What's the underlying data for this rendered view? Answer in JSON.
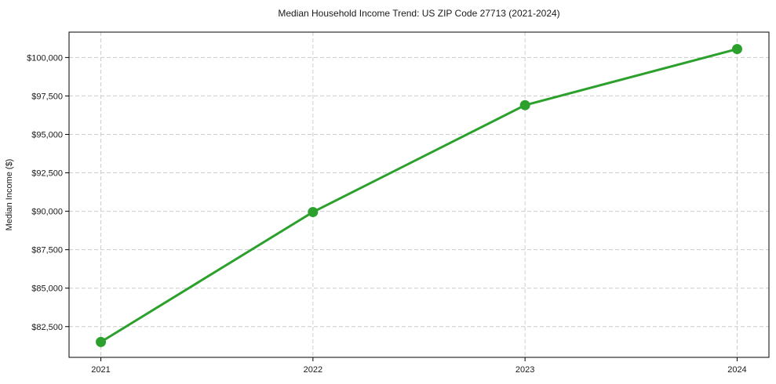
{
  "chart_data": {
    "type": "line",
    "title": "Median Household Income Trend: US ZIP Code 27713 (2021-2024)",
    "xlabel": "",
    "ylabel": "Median Income ($)",
    "x": [
      2021,
      2022,
      2023,
      2024
    ],
    "series": [
      {
        "name": "Median Income",
        "values": [
          81500,
          89950,
          96900,
          100550
        ]
      }
    ],
    "xticks": [
      2021,
      2022,
      2023,
      2024
    ],
    "xtick_labels": [
      "2021",
      "2022",
      "2023",
      "2024"
    ],
    "yticks": [
      82500,
      85000,
      87500,
      90000,
      92500,
      95000,
      97500,
      100000
    ],
    "ytick_labels": [
      "$82,500",
      "$85,000",
      "$87,500",
      "$90,000",
      "$92,500",
      "$95,000",
      "$97,500",
      "$100,000"
    ],
    "xlim": [
      2020.85,
      2024.15
    ],
    "ylim": [
      80500,
      101650
    ],
    "grid": true,
    "grid_style": "dashed",
    "legend_position": "none",
    "line_color": "#2ca02c",
    "marker": "circle"
  }
}
